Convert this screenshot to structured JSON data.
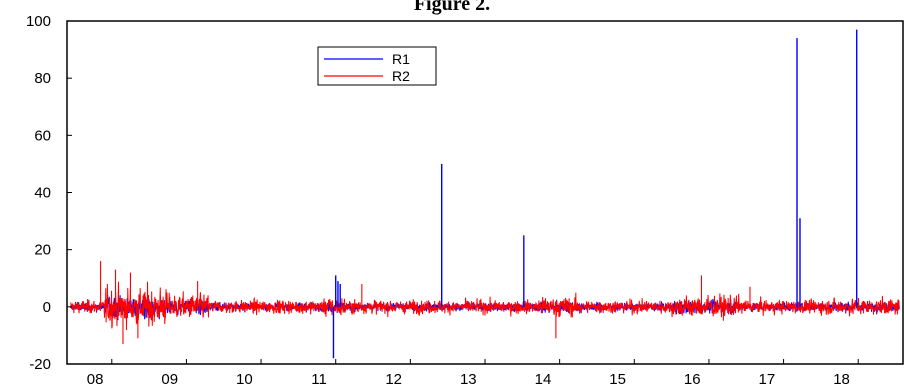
{
  "chart_data": {
    "type": "line",
    "title": "Figure 2.",
    "xlabel": "",
    "ylabel": "",
    "x_tick_labels": [
      "08",
      "09",
      "10",
      "11",
      "12",
      "13",
      "14",
      "15",
      "16",
      "17",
      "18"
    ],
    "y_ticks": [
      -20,
      0,
      20,
      40,
      60,
      80,
      100
    ],
    "xlim": [
      2007.4,
      2018.6
    ],
    "ylim": [
      -20,
      100
    ],
    "grid": false,
    "legend_position": "top-left",
    "series": [
      {
        "name": "R1",
        "color": "#0000ff",
        "spikes": [
          {
            "x": 2010.97,
            "y": -18
          },
          {
            "x": 2011.0,
            "y": 11
          },
          {
            "x": 2011.03,
            "y": 9
          },
          {
            "x": 2011.06,
            "y": 8
          },
          {
            "x": 2012.42,
            "y": 50
          },
          {
            "x": 2013.52,
            "y": 25
          },
          {
            "x": 2017.18,
            "y": 94
          },
          {
            "x": 2017.22,
            "y": 31
          },
          {
            "x": 2017.98,
            "y": 97
          }
        ]
      },
      {
        "name": "R2",
        "color": "#ff0000",
        "spikes": [
          {
            "x": 2007.85,
            "y": 16
          },
          {
            "x": 2008.05,
            "y": 13
          },
          {
            "x": 2008.15,
            "y": -13
          },
          {
            "x": 2008.25,
            "y": 12
          },
          {
            "x": 2008.35,
            "y": -11
          },
          {
            "x": 2009.15,
            "y": 9
          },
          {
            "x": 2011.35,
            "y": 8
          },
          {
            "x": 2013.95,
            "y": -11
          },
          {
            "x": 2015.9,
            "y": 11
          },
          {
            "x": 2016.55,
            "y": 7
          }
        ]
      }
    ]
  }
}
